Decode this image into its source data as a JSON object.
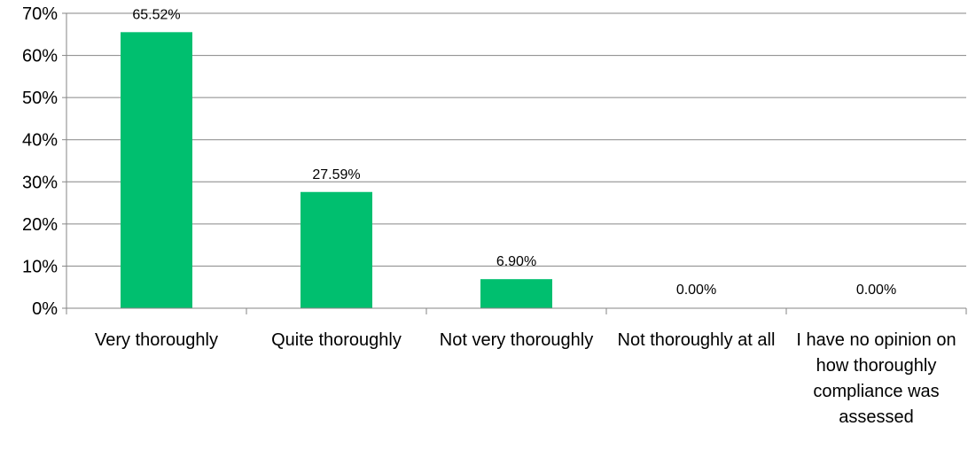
{
  "chart_data": {
    "type": "bar",
    "categories": [
      "Very thoroughly",
      "Quite thoroughly",
      "Not very thoroughly",
      "Not thoroughly at all",
      "I have no opinion on how thoroughly compliance was assessed"
    ],
    "values": [
      65.52,
      27.59,
      6.9,
      0.0,
      0.0
    ],
    "data_labels": [
      "65.52%",
      "27.59%",
      "6.90%",
      "0.00%",
      "0.00%"
    ],
    "title": "",
    "xlabel": "",
    "ylabel": "",
    "ylim": [
      0,
      70
    ],
    "yticks": [
      0,
      10,
      20,
      30,
      40,
      50,
      60,
      70
    ],
    "ytick_labels": [
      "0%",
      "10%",
      "20%",
      "30%",
      "40%",
      "50%",
      "60%",
      "70%"
    ],
    "grid": true,
    "legend": "none",
    "bar_color": "#00BF6F",
    "grid_color": "#868686"
  }
}
